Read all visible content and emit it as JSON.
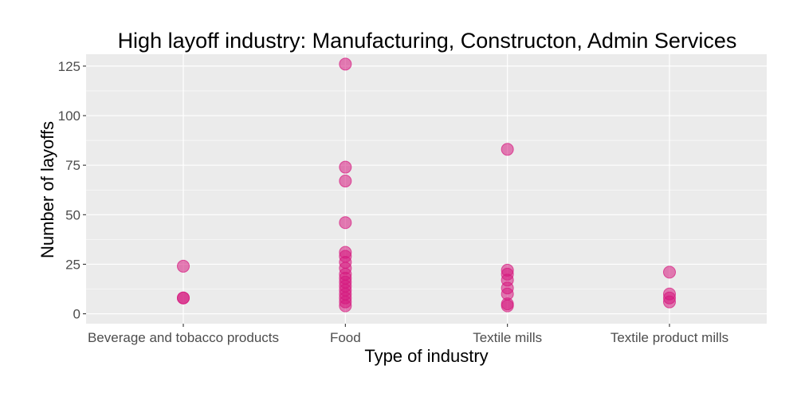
{
  "chart_data": {
    "type": "scatter",
    "title": "High layoff industry: Manufacturing, Constructon, Admin Services",
    "xlabel": "Type of industry",
    "ylabel": "Number of layoffs",
    "categories": [
      "Beverage and tobacco products",
      "Food",
      "Textile mills",
      "Textile product mills"
    ],
    "y_ticks": [
      0,
      25,
      50,
      75,
      100,
      125
    ],
    "ylim": [
      -5,
      131
    ],
    "grid": true,
    "point_color": "#D6177E",
    "panel_background": "#EBEBEB",
    "points": [
      {
        "x": "Beverage and tobacco products",
        "y": 24
      },
      {
        "x": "Beverage and tobacco products",
        "y": 8
      },
      {
        "x": "Beverage and tobacco products",
        "y": 8
      },
      {
        "x": "Food",
        "y": 126
      },
      {
        "x": "Food",
        "y": 74
      },
      {
        "x": "Food",
        "y": 67
      },
      {
        "x": "Food",
        "y": 46
      },
      {
        "x": "Food",
        "y": 31
      },
      {
        "x": "Food",
        "y": 29
      },
      {
        "x": "Food",
        "y": 26
      },
      {
        "x": "Food",
        "y": 23
      },
      {
        "x": "Food",
        "y": 20
      },
      {
        "x": "Food",
        "y": 18
      },
      {
        "x": "Food",
        "y": 16
      },
      {
        "x": "Food",
        "y": 14
      },
      {
        "x": "Food",
        "y": 12
      },
      {
        "x": "Food",
        "y": 10
      },
      {
        "x": "Food",
        "y": 8
      },
      {
        "x": "Food",
        "y": 6
      },
      {
        "x": "Food",
        "y": 4
      },
      {
        "x": "Textile mills",
        "y": 83
      },
      {
        "x": "Textile mills",
        "y": 22
      },
      {
        "x": "Textile mills",
        "y": 20
      },
      {
        "x": "Textile mills",
        "y": 17
      },
      {
        "x": "Textile mills",
        "y": 13
      },
      {
        "x": "Textile mills",
        "y": 10
      },
      {
        "x": "Textile mills",
        "y": 5
      },
      {
        "x": "Textile mills",
        "y": 4
      },
      {
        "x": "Textile product mills",
        "y": 21
      },
      {
        "x": "Textile product mills",
        "y": 10
      },
      {
        "x": "Textile product mills",
        "y": 8
      },
      {
        "x": "Textile product mills",
        "y": 6
      }
    ]
  }
}
